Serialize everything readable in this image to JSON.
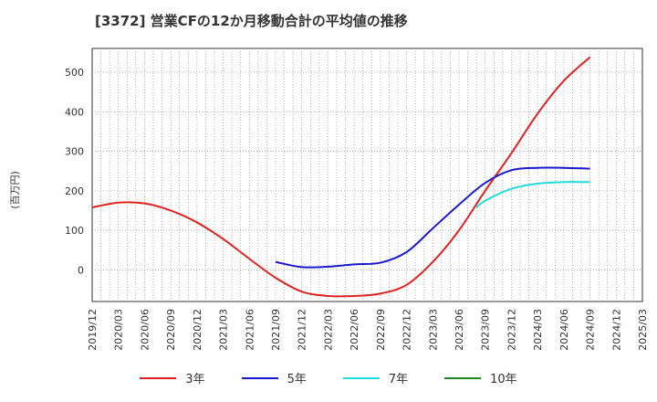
{
  "header": {
    "title": "[3372]  営業CFの12か月移動合計の平均値の推移"
  },
  "chart_data": {
    "type": "line",
    "title": "[3372]  営業CFの12か月移動合計の平均値の推移",
    "ylabel": "(百万円)",
    "xlabel": "",
    "ylim": [
      -80,
      560
    ],
    "yticks": [
      0,
      100,
      200,
      300,
      400,
      500
    ],
    "x_tick_labels": [
      "2019/12",
      "2020/03",
      "2020/06",
      "2020/09",
      "2020/12",
      "2021/03",
      "2021/06",
      "2021/09",
      "2021/12",
      "2022/03",
      "2022/06",
      "2022/09",
      "2022/12",
      "2023/03",
      "2023/06",
      "2023/09",
      "2023/12",
      "2024/03",
      "2024/06",
      "2024/09",
      "2024/12",
      "2025/03"
    ],
    "grid": true,
    "legend_position": "bottom",
    "series": [
      {
        "name": "3年",
        "color": "#dd2222",
        "x": [
          "2019/12",
          "2020/03",
          "2020/06",
          "2020/09",
          "2020/12",
          "2021/03",
          "2021/06",
          "2021/09",
          "2021/12",
          "2022/03",
          "2022/06",
          "2022/09",
          "2022/12",
          "2023/03",
          "2023/06",
          "2023/09",
          "2023/12",
          "2024/03",
          "2024/06",
          "2024/09"
        ],
        "values": [
          158,
          170,
          168,
          150,
          120,
          78,
          28,
          -20,
          -55,
          -66,
          -66,
          -60,
          -38,
          20,
          100,
          200,
          295,
          395,
          478,
          538
        ]
      },
      {
        "name": "5年",
        "color": "#1a1acc",
        "x": [
          "2021/09",
          "2021/12",
          "2022/03",
          "2022/06",
          "2022/09",
          "2022/12",
          "2023/03",
          "2023/06",
          "2023/09",
          "2023/12",
          "2024/03",
          "2024/06",
          "2024/09"
        ],
        "values": [
          20,
          7,
          8,
          14,
          18,
          45,
          105,
          165,
          220,
          252,
          258,
          258,
          256
        ]
      },
      {
        "name": "7年",
        "color": "#22dddd",
        "x": [
          "2023/08",
          "2023/09",
          "2023/12",
          "2024/03",
          "2024/06",
          "2024/09"
        ],
        "values": [
          158,
          175,
          205,
          218,
          222,
          222
        ]
      },
      {
        "name": "10年",
        "color": "#228822",
        "x": [],
        "values": []
      }
    ]
  }
}
